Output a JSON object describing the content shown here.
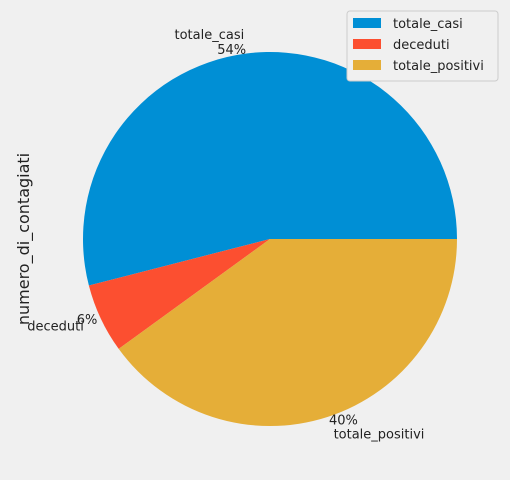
{
  "chart_data": {
    "type": "pie",
    "ylabel": "numero_di_contagiati",
    "categories": [
      "totale_casi",
      "deceduti",
      "totale_positivi"
    ],
    "values": [
      54,
      6,
      40
    ],
    "percent_labels": [
      "54%",
      "6%",
      "40%"
    ],
    "start_angle_deg": 0,
    "direction": "counterclockwise",
    "legend": {
      "placement": "top-right",
      "entries": [
        "totale_casi",
        "deceduti",
        "totale_positivi"
      ]
    },
    "colors": [
      "#008fd5",
      "#fc4f30",
      "#e5ae38"
    ]
  }
}
